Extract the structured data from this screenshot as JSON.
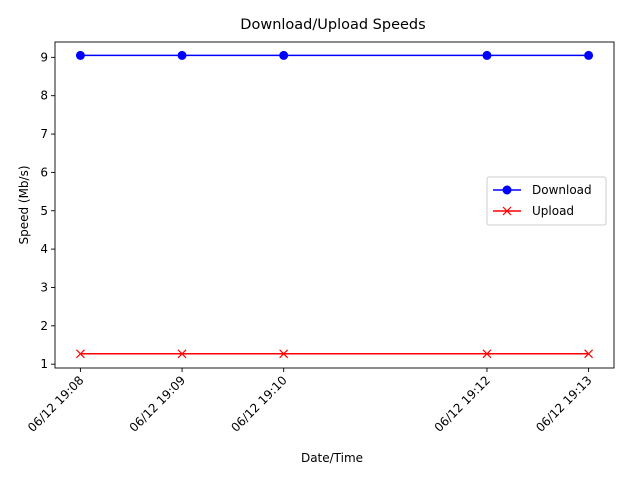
{
  "chart_data": {
    "type": "line",
    "title": "Download/Upload Speeds",
    "xlabel": "Date/Time",
    "ylabel": "Speed (Mb/s)",
    "x": [
      "06/12 19:08",
      "06/12 19:09",
      "06/12 19:10",
      "06/12 19:12",
      "06/12 19:13"
    ],
    "x_minutes": [
      0,
      1,
      2,
      4,
      5
    ],
    "ylim": [
      0.9,
      9.4
    ],
    "yticks": [
      1,
      2,
      3,
      4,
      5,
      6,
      7,
      8,
      9
    ],
    "grid": false,
    "legend_position": "center-right",
    "series": [
      {
        "name": "Download",
        "values": [
          9.05,
          9.05,
          9.05,
          9.05,
          9.05
        ],
        "color": "#0000ff",
        "marker": "circle"
      },
      {
        "name": "Upload",
        "values": [
          1.27,
          1.27,
          1.27,
          1.27,
          1.27
        ],
        "color": "#ff0000",
        "marker": "x"
      }
    ]
  }
}
